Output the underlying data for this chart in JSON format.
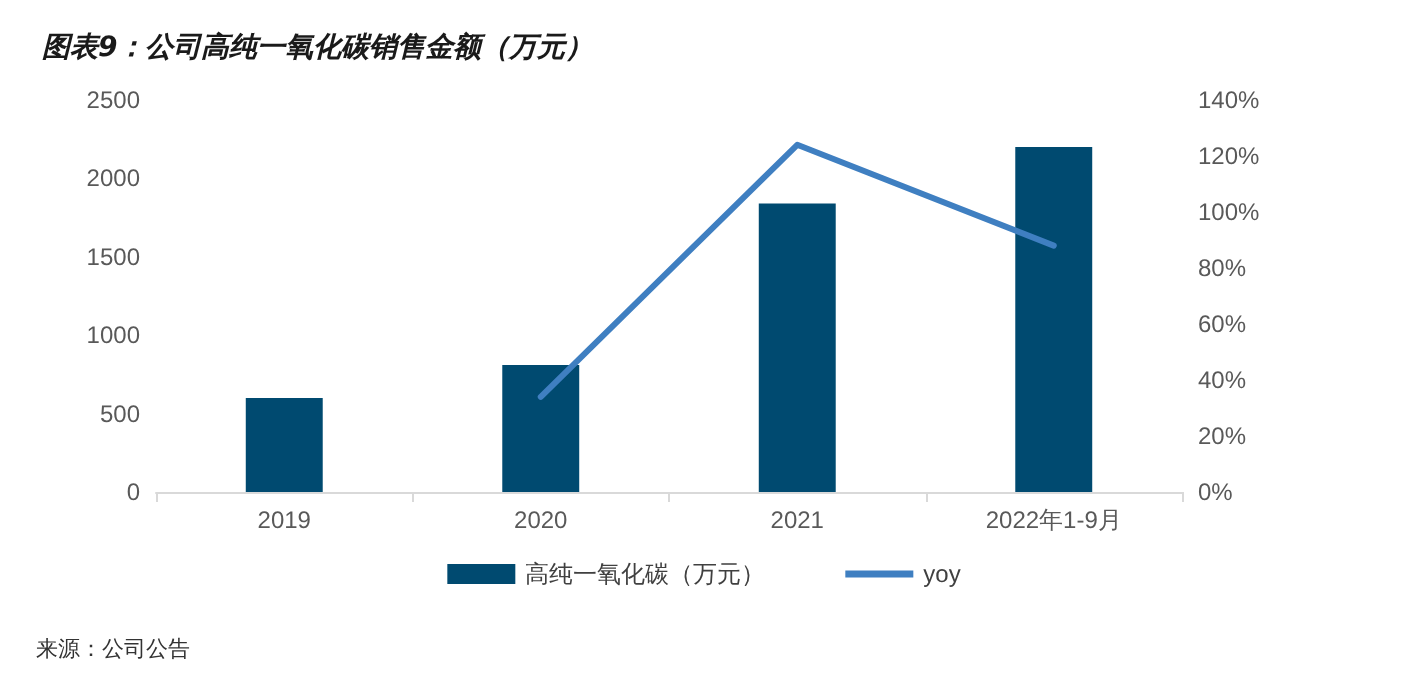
{
  "chart_data": {
    "type": "bar",
    "title": "图表9：公司高纯一氧化碳销售金额（万元）",
    "categories": [
      "2019",
      "2020",
      "2021",
      "2022年1-9月"
    ],
    "series": [
      {
        "name": "高纯一氧化碳（万元）",
        "color": "#004a70",
        "values": [
          600,
          810,
          1840,
          2200
        ]
      },
      {
        "name": "yoy",
        "type": "line",
        "axis": "y2",
        "color": "#3f7fc1",
        "values": [
          null,
          34,
          124,
          88
        ]
      }
    ],
    "ylim": [
      0,
      2500
    ],
    "yticks": [
      0,
      500,
      1000,
      1500,
      2000,
      2500
    ],
    "y2lim": [
      0,
      140
    ],
    "y2ticks": [
      {
        "value": 0,
        "label": "0%"
      },
      {
        "value": 20,
        "label": "20%"
      },
      {
        "value": 40,
        "label": "40%"
      },
      {
        "value": 60,
        "label": "60%"
      },
      {
        "value": 80,
        "label": "80%"
      },
      {
        "value": 100,
        "label": "100%"
      },
      {
        "value": 120,
        "label": "120%"
      },
      {
        "value": 140,
        "label": "140%"
      }
    ],
    "legend": "bottom",
    "grid": false,
    "marker": "none",
    "annotations": [
      "来源：公司公告"
    ]
  }
}
